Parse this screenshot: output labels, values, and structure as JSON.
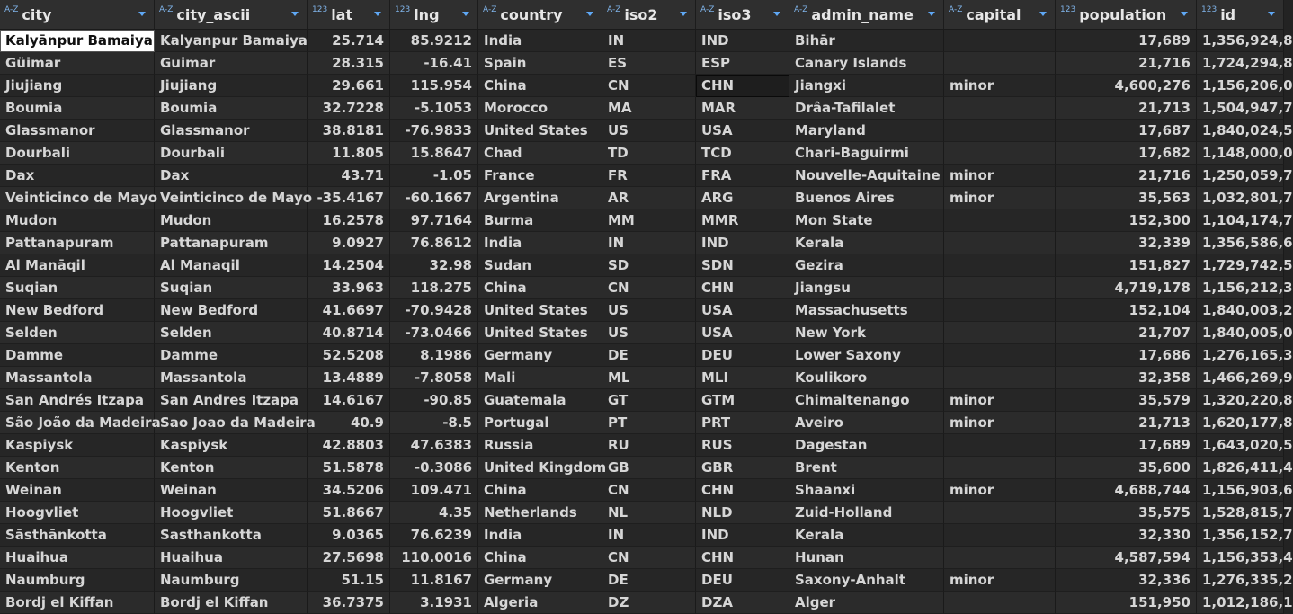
{
  "columns": [
    {
      "name": "city",
      "type": "A-Z"
    },
    {
      "name": "city_ascii",
      "type": "A-Z"
    },
    {
      "name": "lat",
      "type": "123"
    },
    {
      "name": "lng",
      "type": "123"
    },
    {
      "name": "country",
      "type": "A-Z"
    },
    {
      "name": "iso2",
      "type": "A-Z"
    },
    {
      "name": "iso3",
      "type": "A-Z"
    },
    {
      "name": "admin_name",
      "type": "A-Z"
    },
    {
      "name": "capital",
      "type": "A-Z"
    },
    {
      "name": "population",
      "type": "123"
    },
    {
      "name": "id",
      "type": "123"
    }
  ],
  "rows": [
    [
      "Kalyānpur Bamaiya",
      "Kalyanpur Bamaiya",
      "25.714",
      "85.9212",
      "India",
      "IN",
      "IND",
      "Bihār",
      "",
      "17,689",
      "1,356,924,8"
    ],
    [
      "Güimar",
      "Guimar",
      "28.315",
      "-16.41",
      "Spain",
      "ES",
      "ESP",
      "Canary Islands",
      "",
      "21,716",
      "1,724,294,8"
    ],
    [
      "Jiujiang",
      "Jiujiang",
      "29.661",
      "115.954",
      "China",
      "CN",
      "CHN",
      "Jiangxi",
      "minor",
      "4,600,276",
      "1,156,206,0"
    ],
    [
      "Boumia",
      "Boumia",
      "32.7228",
      "-5.1053",
      "Morocco",
      "MA",
      "MAR",
      "Drâa-Tafilalet",
      "",
      "21,713",
      "1,504,947,7"
    ],
    [
      "Glassmanor",
      "Glassmanor",
      "38.8181",
      "-76.9833",
      "United States",
      "US",
      "USA",
      "Maryland",
      "",
      "17,687",
      "1,840,024,5"
    ],
    [
      "Dourbali",
      "Dourbali",
      "11.805",
      "15.8647",
      "Chad",
      "TD",
      "TCD",
      "Chari-Baguirmi",
      "",
      "17,682",
      "1,148,000,0"
    ],
    [
      "Dax",
      "Dax",
      "43.71",
      "-1.05",
      "France",
      "FR",
      "FRA",
      "Nouvelle-Aquitaine",
      "minor",
      "21,716",
      "1,250,059,7"
    ],
    [
      "Veinticinco de Mayo",
      "Veinticinco de Mayo",
      "-35.4167",
      "-60.1667",
      "Argentina",
      "AR",
      "ARG",
      "Buenos Aires",
      "minor",
      "35,563",
      "1,032,801,7"
    ],
    [
      "Mudon",
      "Mudon",
      "16.2578",
      "97.7164",
      "Burma",
      "MM",
      "MMR",
      "Mon State",
      "",
      "152,300",
      "1,104,174,7"
    ],
    [
      "Pattanapuram",
      "Pattanapuram",
      "9.0927",
      "76.8612",
      "India",
      "IN",
      "IND",
      "Kerala",
      "",
      "32,339",
      "1,356,586,6"
    ],
    [
      "Al Manāqil",
      "Al Manaqil",
      "14.2504",
      "32.98",
      "Sudan",
      "SD",
      "SDN",
      "Gezira",
      "",
      "151,827",
      "1,729,742,5"
    ],
    [
      "Suqian",
      "Suqian",
      "33.963",
      "118.275",
      "China",
      "CN",
      "CHN",
      "Jiangsu",
      "",
      "4,719,178",
      "1,156,212,3"
    ],
    [
      "New Bedford",
      "New Bedford",
      "41.6697",
      "-70.9428",
      "United States",
      "US",
      "USA",
      "Massachusetts",
      "",
      "152,104",
      "1,840,003,2"
    ],
    [
      "Selden",
      "Selden",
      "40.8714",
      "-73.0466",
      "United States",
      "US",
      "USA",
      "New York",
      "",
      "21,707",
      "1,840,005,0"
    ],
    [
      "Damme",
      "Damme",
      "52.5208",
      "8.1986",
      "Germany",
      "DE",
      "DEU",
      "Lower Saxony",
      "",
      "17,686",
      "1,276,165,3"
    ],
    [
      "Massantola",
      "Massantola",
      "13.4889",
      "-7.8058",
      "Mali",
      "ML",
      "MLI",
      "Koulikoro",
      "",
      "32,358",
      "1,466,269,9"
    ],
    [
      "San Andrés Itzapa",
      "San Andres Itzapa",
      "14.6167",
      "-90.85",
      "Guatemala",
      "GT",
      "GTM",
      "Chimaltenango",
      "minor",
      "35,579",
      "1,320,220,8"
    ],
    [
      "São João da Madeira",
      "Sao Joao da Madeira",
      "40.9",
      "-8.5",
      "Portugal",
      "PT",
      "PRT",
      "Aveiro",
      "minor",
      "21,713",
      "1,620,177,8"
    ],
    [
      "Kaspiysk",
      "Kaspiysk",
      "42.8803",
      "47.6383",
      "Russia",
      "RU",
      "RUS",
      "Dagestan",
      "",
      "17,689",
      "1,643,020,5"
    ],
    [
      "Kenton",
      "Kenton",
      "51.5878",
      "-0.3086",
      "United Kingdom",
      "GB",
      "GBR",
      "Brent",
      "",
      "35,600",
      "1,826,411,4"
    ],
    [
      "Weinan",
      "Weinan",
      "34.5206",
      "109.471",
      "China",
      "CN",
      "CHN",
      "Shaanxi",
      "minor",
      "4,688,744",
      "1,156,903,6"
    ],
    [
      "Hoogvliet",
      "Hoogvliet",
      "51.8667",
      "4.35",
      "Netherlands",
      "NL",
      "NLD",
      "Zuid-Holland",
      "",
      "35,575",
      "1,528,815,7"
    ],
    [
      "Sāsthānkotta",
      "Sasthankotta",
      "9.0365",
      "76.6239",
      "India",
      "IN",
      "IND",
      "Kerala",
      "",
      "32,330",
      "1,356,152,7"
    ],
    [
      "Huaihua",
      "Huaihua",
      "27.5698",
      "110.0016",
      "China",
      "CN",
      "CHN",
      "Hunan",
      "",
      "4,587,594",
      "1,156,353,4"
    ],
    [
      "Naumburg",
      "Naumburg",
      "51.15",
      "11.8167",
      "Germany",
      "DE",
      "DEU",
      "Saxony-Anhalt",
      "minor",
      "32,336",
      "1,276,335,2"
    ],
    [
      "Bordj el Kiffan",
      "Bordj el Kiffan",
      "36.7375",
      "3.1931",
      "Algeria",
      "DZ",
      "DZA",
      "Alger",
      "",
      "151,950",
      "1,012,186,1"
    ]
  ]
}
